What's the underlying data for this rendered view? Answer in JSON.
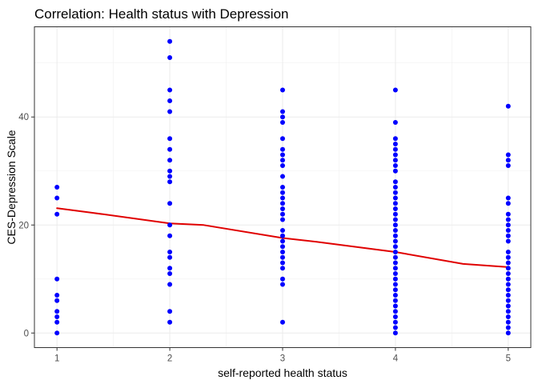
{
  "chart_data": {
    "type": "scatter",
    "title": "Correlation: Health status with Depression",
    "xlabel": "self-reported health status",
    "ylabel": "CES-Depression Scale",
    "xlim": [
      0.8,
      5.2
    ],
    "ylim": [
      -2.7,
      56.7
    ],
    "x_ticks": [
      1,
      2,
      3,
      4,
      5
    ],
    "y_ticks": [
      0,
      20,
      40
    ],
    "grid": true,
    "point_color": "#0000ff",
    "line_color": "#e00000",
    "points": [
      {
        "x": 1,
        "y": 0
      },
      {
        "x": 1,
        "y": 2
      },
      {
        "x": 1,
        "y": 3
      },
      {
        "x": 1,
        "y": 4
      },
      {
        "x": 1,
        "y": 6
      },
      {
        "x": 1,
        "y": 7
      },
      {
        "x": 1,
        "y": 10
      },
      {
        "x": 1,
        "y": 22
      },
      {
        "x": 1,
        "y": 25
      },
      {
        "x": 1,
        "y": 27
      },
      {
        "x": 2,
        "y": 2
      },
      {
        "x": 2,
        "y": 4
      },
      {
        "x": 2,
        "y": 9
      },
      {
        "x": 2,
        "y": 11
      },
      {
        "x": 2,
        "y": 12
      },
      {
        "x": 2,
        "y": 14
      },
      {
        "x": 2,
        "y": 15
      },
      {
        "x": 2,
        "y": 18
      },
      {
        "x": 2,
        "y": 20
      },
      {
        "x": 2,
        "y": 24
      },
      {
        "x": 2,
        "y": 28
      },
      {
        "x": 2,
        "y": 29
      },
      {
        "x": 2,
        "y": 30
      },
      {
        "x": 2,
        "y": 32
      },
      {
        "x": 2,
        "y": 34
      },
      {
        "x": 2,
        "y": 36
      },
      {
        "x": 2,
        "y": 41
      },
      {
        "x": 2,
        "y": 43
      },
      {
        "x": 2,
        "y": 45
      },
      {
        "x": 2,
        "y": 51
      },
      {
        "x": 2,
        "y": 54
      },
      {
        "x": 3,
        "y": 2
      },
      {
        "x": 3,
        "y": 9
      },
      {
        "x": 3,
        "y": 10
      },
      {
        "x": 3,
        "y": 12
      },
      {
        "x": 3,
        "y": 13
      },
      {
        "x": 3,
        "y": 14
      },
      {
        "x": 3,
        "y": 15
      },
      {
        "x": 3,
        "y": 16
      },
      {
        "x": 3,
        "y": 17
      },
      {
        "x": 3,
        "y": 18
      },
      {
        "x": 3,
        "y": 19
      },
      {
        "x": 3,
        "y": 21
      },
      {
        "x": 3,
        "y": 22
      },
      {
        "x": 3,
        "y": 23
      },
      {
        "x": 3,
        "y": 24
      },
      {
        "x": 3,
        "y": 25
      },
      {
        "x": 3,
        "y": 26
      },
      {
        "x": 3,
        "y": 27
      },
      {
        "x": 3,
        "y": 29
      },
      {
        "x": 3,
        "y": 31
      },
      {
        "x": 3,
        "y": 32
      },
      {
        "x": 3,
        "y": 33
      },
      {
        "x": 3,
        "y": 34
      },
      {
        "x": 3,
        "y": 36
      },
      {
        "x": 3,
        "y": 39
      },
      {
        "x": 3,
        "y": 40
      },
      {
        "x": 3,
        "y": 41
      },
      {
        "x": 3,
        "y": 45
      },
      {
        "x": 4,
        "y": 0
      },
      {
        "x": 4,
        "y": 1
      },
      {
        "x": 4,
        "y": 2
      },
      {
        "x": 4,
        "y": 3
      },
      {
        "x": 4,
        "y": 4
      },
      {
        "x": 4,
        "y": 5
      },
      {
        "x": 4,
        "y": 6
      },
      {
        "x": 4,
        "y": 7
      },
      {
        "x": 4,
        "y": 8
      },
      {
        "x": 4,
        "y": 9
      },
      {
        "x": 4,
        "y": 10
      },
      {
        "x": 4,
        "y": 11
      },
      {
        "x": 4,
        "y": 12
      },
      {
        "x": 4,
        "y": 13
      },
      {
        "x": 4,
        "y": 14
      },
      {
        "x": 4,
        "y": 15
      },
      {
        "x": 4,
        "y": 16
      },
      {
        "x": 4,
        "y": 17
      },
      {
        "x": 4,
        "y": 18
      },
      {
        "x": 4,
        "y": 19
      },
      {
        "x": 4,
        "y": 20
      },
      {
        "x": 4,
        "y": 21
      },
      {
        "x": 4,
        "y": 22
      },
      {
        "x": 4,
        "y": 23
      },
      {
        "x": 4,
        "y": 24
      },
      {
        "x": 4,
        "y": 25
      },
      {
        "x": 4,
        "y": 26
      },
      {
        "x": 4,
        "y": 27
      },
      {
        "x": 4,
        "y": 28
      },
      {
        "x": 4,
        "y": 30
      },
      {
        "x": 4,
        "y": 31
      },
      {
        "x": 4,
        "y": 32
      },
      {
        "x": 4,
        "y": 33
      },
      {
        "x": 4,
        "y": 34
      },
      {
        "x": 4,
        "y": 35
      },
      {
        "x": 4,
        "y": 36
      },
      {
        "x": 4,
        "y": 39
      },
      {
        "x": 4,
        "y": 45
      },
      {
        "x": 5,
        "y": 0
      },
      {
        "x": 5,
        "y": 1
      },
      {
        "x": 5,
        "y": 2
      },
      {
        "x": 5,
        "y": 3
      },
      {
        "x": 5,
        "y": 4
      },
      {
        "x": 5,
        "y": 5
      },
      {
        "x": 5,
        "y": 6
      },
      {
        "x": 5,
        "y": 7
      },
      {
        "x": 5,
        "y": 8
      },
      {
        "x": 5,
        "y": 9
      },
      {
        "x": 5,
        "y": 10
      },
      {
        "x": 5,
        "y": 11
      },
      {
        "x": 5,
        "y": 12
      },
      {
        "x": 5,
        "y": 13
      },
      {
        "x": 5,
        "y": 14
      },
      {
        "x": 5,
        "y": 15
      },
      {
        "x": 5,
        "y": 17
      },
      {
        "x": 5,
        "y": 18
      },
      {
        "x": 5,
        "y": 19
      },
      {
        "x": 5,
        "y": 20
      },
      {
        "x": 5,
        "y": 21
      },
      {
        "x": 5,
        "y": 22
      },
      {
        "x": 5,
        "y": 24
      },
      {
        "x": 5,
        "y": 25
      },
      {
        "x": 5,
        "y": 31
      },
      {
        "x": 5,
        "y": 32
      },
      {
        "x": 5,
        "y": 33
      },
      {
        "x": 5,
        "y": 42
      }
    ],
    "trend_line": [
      {
        "x": 1,
        "y": 23.1
      },
      {
        "x": 1.3,
        "y": 22.3
      },
      {
        "x": 2,
        "y": 20.3
      },
      {
        "x": 2.3,
        "y": 20.0
      },
      {
        "x": 3,
        "y": 17.6
      },
      {
        "x": 3.3,
        "y": 16.9
      },
      {
        "x": 4,
        "y": 15.0
      },
      {
        "x": 4.6,
        "y": 12.8
      },
      {
        "x": 5,
        "y": 12.2
      }
    ]
  }
}
